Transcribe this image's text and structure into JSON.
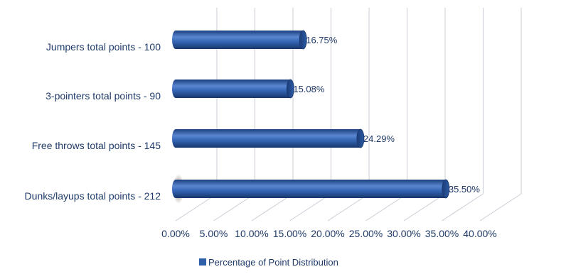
{
  "chart_data": {
    "type": "bar",
    "orientation": "horizontal",
    "title": "",
    "xlabel": "",
    "ylabel": "",
    "categories": [
      "Jumpers total points - 100",
      "3-pointers total points - 90",
      "Free throws total points - 145",
      "Dunks/layups total points - 212"
    ],
    "series": [
      {
        "name": "Percentage of Point Distribution",
        "values": [
          16.75,
          15.08,
          24.29,
          35.5
        ],
        "labels": [
          "16.75%",
          "15.08%",
          "24.29%",
          "35.50%"
        ],
        "color": "#2f5fa8"
      }
    ],
    "xlim": [
      0,
      40
    ],
    "x_ticks": [
      "0.00%",
      "5.00%",
      "10.00%",
      "15.00%",
      "20.00%",
      "25.00%",
      "30.00%",
      "35.00%",
      "40.00%"
    ],
    "grid": true,
    "legend_position": "bottom"
  }
}
